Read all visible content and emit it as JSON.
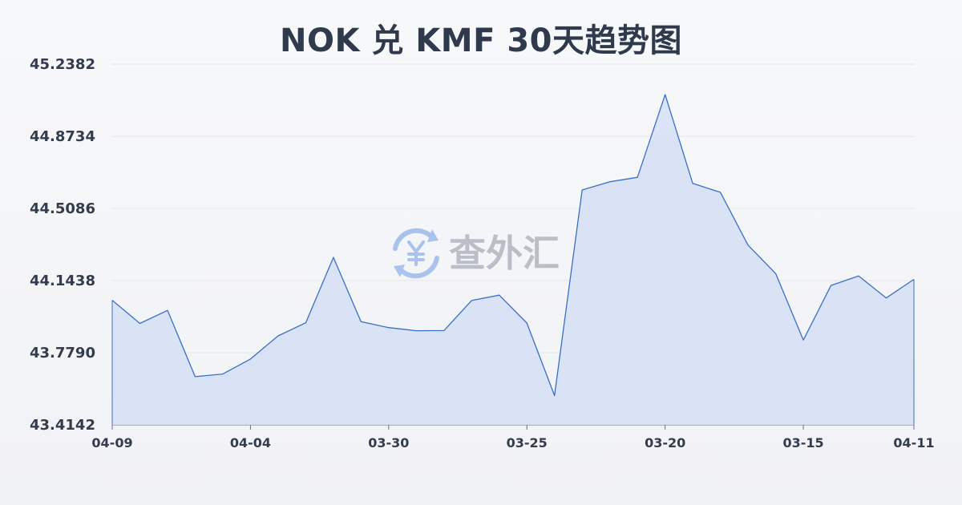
{
  "chart_data": {
    "type": "area",
    "title": "NOK 兑 KMF 30天趋势图",
    "xlabel": "",
    "ylabel": "",
    "y_ticks": [
      "45.2382",
      "44.8734",
      "44.5086",
      "44.1438",
      "43.7790",
      "43.4142"
    ],
    "ylim": [
      43.4142,
      45.2382
    ],
    "x_ticks": [
      "04-09",
      "04-04",
      "03-30",
      "03-25",
      "03-20",
      "03-15",
      "04-11"
    ],
    "grid": true,
    "legend": "none",
    "series": [
      {
        "values": [
          44.044,
          43.927,
          43.993,
          43.658,
          43.671,
          43.747,
          43.864,
          43.93,
          44.261,
          43.936,
          43.906,
          43.89,
          43.891,
          44.043,
          44.07,
          43.929,
          43.562,
          44.602,
          44.643,
          44.666,
          45.084,
          44.635,
          44.59,
          44.323,
          44.179,
          43.843,
          44.119,
          44.167,
          44.056,
          44.15
        ]
      }
    ],
    "colors": {
      "line": "#3a6fc4",
      "fill": "#d7e1f5",
      "grid": "#e3e6ea"
    }
  },
  "watermark": {
    "text": "查外汇",
    "icon": "yen-exchange-icon"
  }
}
